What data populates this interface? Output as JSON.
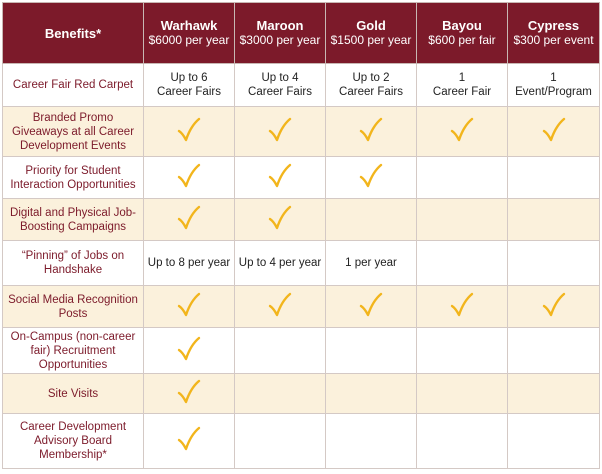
{
  "header": {
    "benefits_label": "Benefits*",
    "tiers": [
      {
        "name": "Warhawk",
        "price": "$6000 per year"
      },
      {
        "name": "Maroon",
        "price": "$3000 per year"
      },
      {
        "name": "Gold",
        "price": "$1500 per year"
      },
      {
        "name": "Bayou",
        "price": "$600 per fair"
      },
      {
        "name": "Cypress",
        "price": "$300 per event"
      }
    ]
  },
  "rows": [
    {
      "benefit": [
        "Career Fair Red Carpet"
      ],
      "cells": [
        [
          "Up to 6",
          "Career Fairs"
        ],
        [
          "Up to 4",
          "Career Fairs"
        ],
        [
          "Up to 2",
          "Career Fairs"
        ],
        [
          "1",
          "Career Fair"
        ],
        [
          "1",
          "Event/Program"
        ]
      ]
    },
    {
      "benefit": [
        "Branded Promo",
        "Giveaways at all Career",
        "Development Events"
      ],
      "cells": [
        "check",
        "check",
        "check",
        "check",
        "check"
      ]
    },
    {
      "benefit": [
        "Priority for Student",
        "Interaction Opportunities"
      ],
      "cells": [
        "check",
        "check",
        "check",
        "",
        ""
      ]
    },
    {
      "benefit": [
        "Digital and Physical Job-",
        "Boosting Campaigns"
      ],
      "cells": [
        "check",
        "check",
        "",
        "",
        ""
      ]
    },
    {
      "benefit": [
        "“Pinning” of Jobs on",
        "Handshake"
      ],
      "cells": [
        [
          "Up to 8 per year"
        ],
        [
          "Up to 4 per year"
        ],
        [
          "1 per year"
        ],
        "",
        ""
      ]
    },
    {
      "benefit": [
        "Social Media Recognition",
        "Posts"
      ],
      "cells": [
        "check",
        "check",
        "check",
        "check",
        "check"
      ]
    },
    {
      "benefit": [
        "On-Campus (non-career",
        "fair) Recruitment",
        "Opportunities"
      ],
      "cells": [
        "check",
        "",
        "",
        "",
        ""
      ]
    },
    {
      "benefit": [
        "Site Visits"
      ],
      "cells": [
        "check",
        "",
        "",
        "",
        ""
      ]
    },
    {
      "benefit": [
        "Career Development",
        "Advisory Board",
        "Membership*"
      ],
      "cells": [
        "check",
        "",
        "",
        "",
        ""
      ]
    }
  ],
  "colors": {
    "header_bg": "#7c1a2a",
    "alt_row_bg": "#fbf1dc",
    "check": "#f2b51c",
    "benefit_text": "#7c1a2a"
  },
  "icons": {
    "check": "checkmark-icon"
  }
}
